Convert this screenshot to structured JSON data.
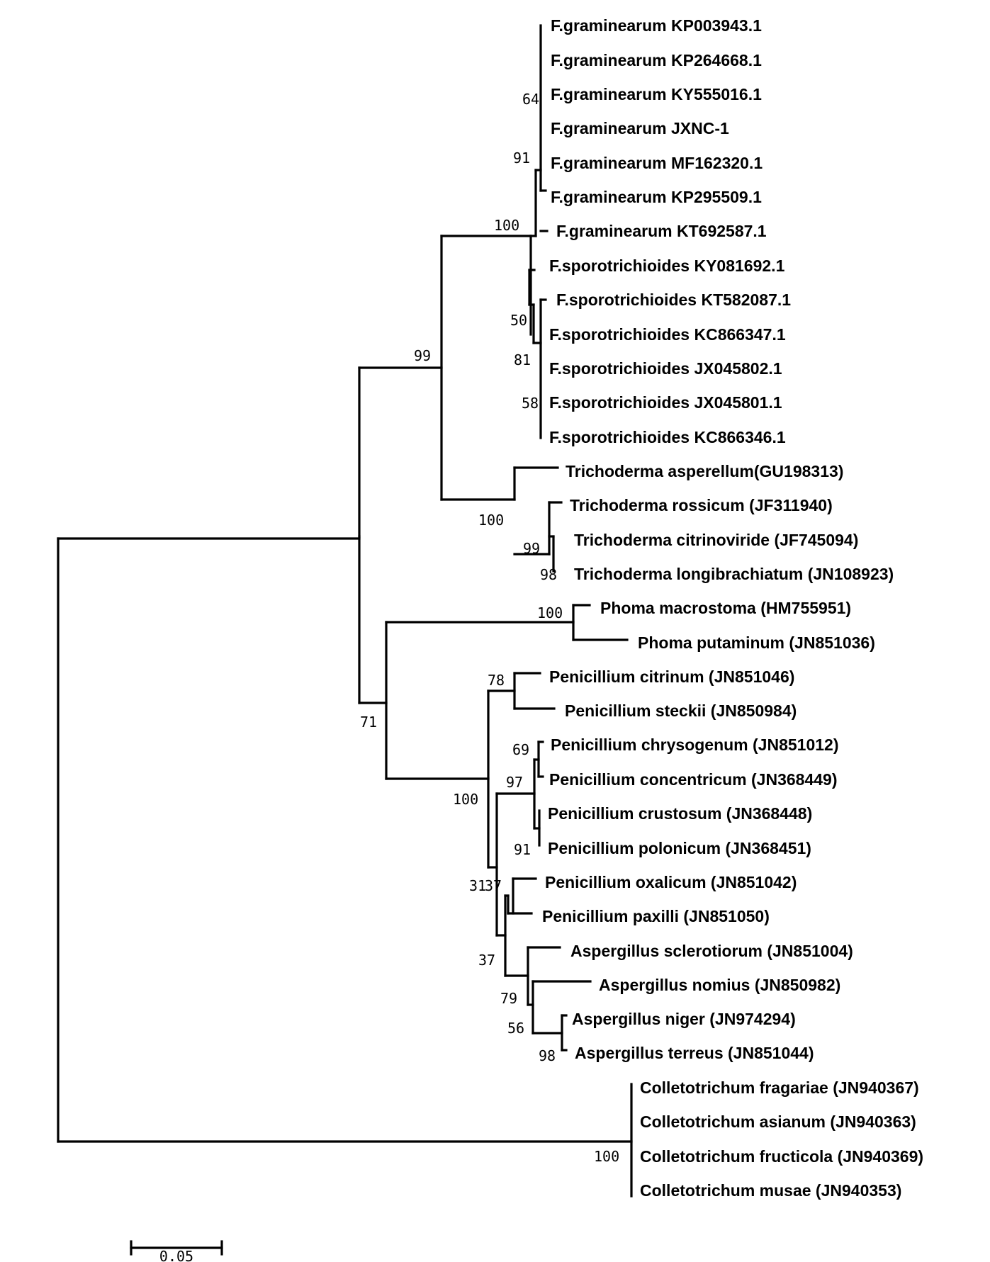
{
  "tree": {
    "leaves": [
      "F.graminearum KP003943.1",
      "F.graminearum KP264668.1",
      "F.graminearum KY555016.1",
      "F.graminearum JXNC-1",
      "F.graminearum MF162320.1",
      "F.graminearum KP295509.1",
      "F.graminearum KT692587.1",
      "F.sporotrichioides KY081692.1",
      "F.sporotrichioides KT582087.1",
      "F.sporotrichioides KC866347.1",
      "F.sporotrichioides JX045802.1",
      "F.sporotrichioides JX045801.1",
      "F.sporotrichioides KC866346.1",
      "Trichoderma asperellum(GU198313)",
      "Trichoderma rossicum (JF311940)",
      "Trichoderma citrinoviride (JF745094)",
      "Trichoderma longibrachiatum (JN108923)",
      "Phoma macrostoma (HM755951)",
      "Phoma putaminum (JN851036)",
      "Penicillium citrinum (JN851046)",
      "Penicillium steckii (JN850984)",
      "Penicillium chrysogenum (JN851012)",
      "Penicillium concentricum (JN368449)",
      "Penicillium crustosum (JN368448)",
      "Penicillium polonicum (JN368451)",
      "Penicillium oxalicum (JN851042)",
      "Penicillium paxilli (JN851050)",
      "Aspergillus sclerotiorum (JN851004)",
      "Aspergillus nomius (JN850982)",
      "Aspergillus niger (JN974294)",
      "Aspergillus terreus (JN851044)",
      "Colletotrichum fragariae (JN940367)",
      "Colletotrichum asianum (JN940363)",
      "Colletotrichum fructicola (JN940369)",
      "Colletotrichum musae (JN940353)"
    ],
    "support": [
      "64",
      "91",
      "100",
      "50",
      "81",
      "58",
      "99",
      "100",
      "99",
      "98",
      "100",
      "78",
      "69",
      "97",
      "91",
      "100",
      "31",
      "37",
      "37",
      "79",
      "56",
      "98",
      "71",
      "100"
    ],
    "scale_bar_label": "0.05"
  }
}
